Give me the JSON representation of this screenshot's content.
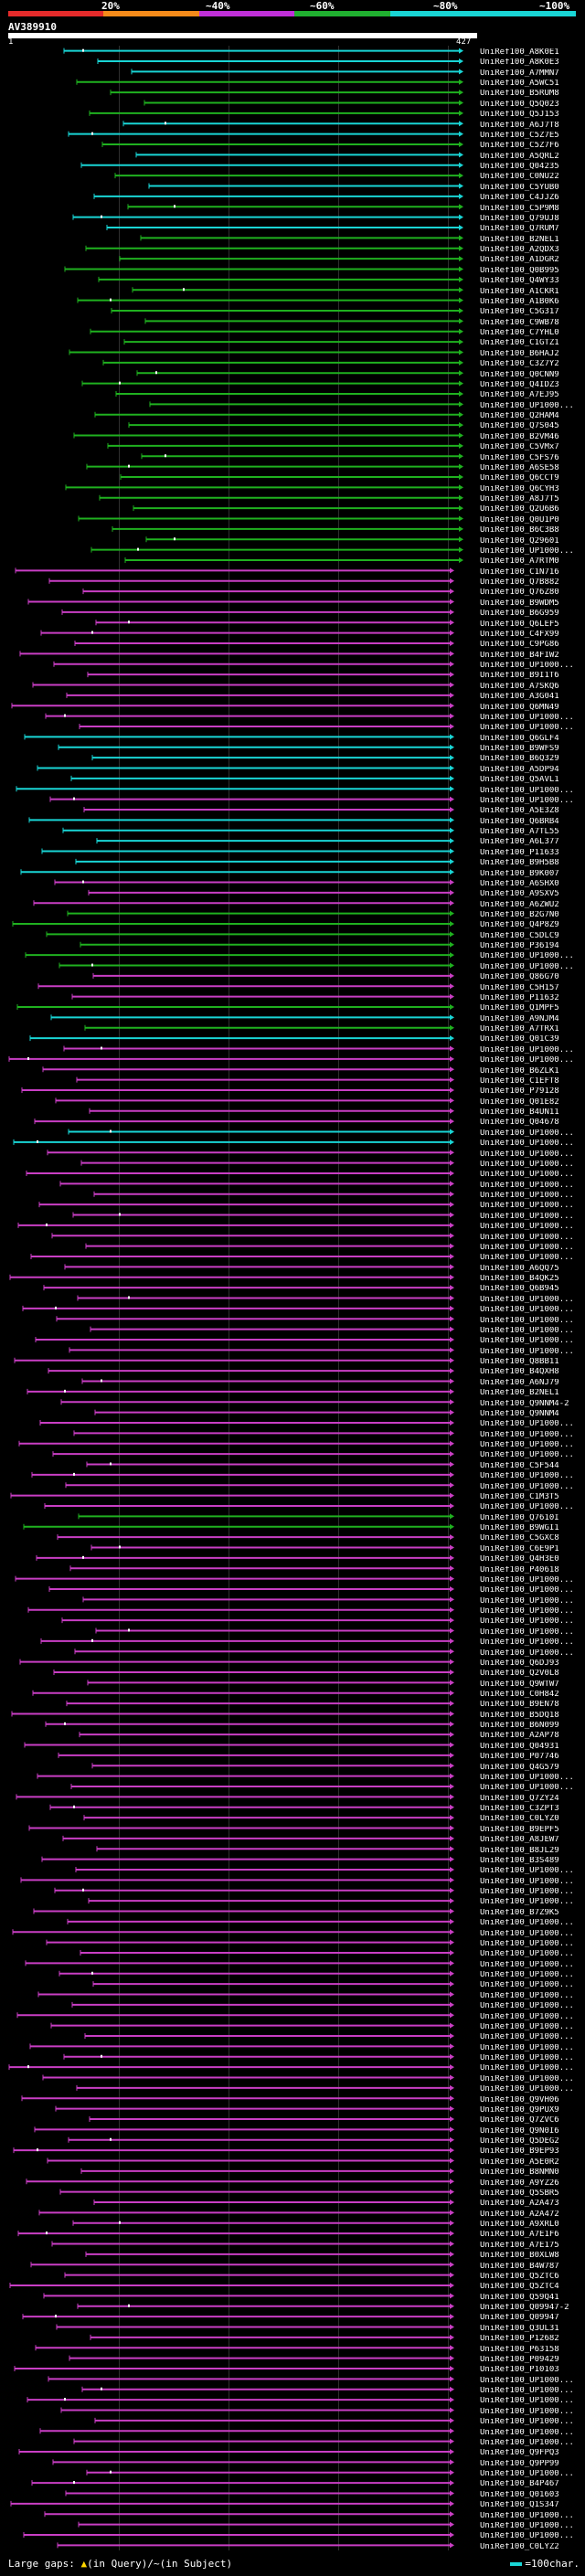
{
  "scale": {
    "labels": [
      "20%",
      "~40%",
      "~60%",
      "~80%",
      "~100%"
    ],
    "colors": [
      "#e52b2b",
      "#f58b1a",
      "#c030d8",
      "#20b030",
      "#19d5d5"
    ]
  },
  "query": {
    "id": "AV389910",
    "start": "1",
    "end": "427"
  },
  "legend": {
    "large_gaps_prefix": "Large gaps:",
    "in_query": "(in Query)",
    "separator": "/",
    "in_subject_prefix": "~",
    "in_subject": "(in Subject)",
    "scale_text": "=100char."
  },
  "colors": {
    "cyan": "#19d5d5",
    "green": "#1fb11f",
    "magenta": "#c93ec4",
    "gap": "#ffd700"
  },
  "hits": [
    "UniRef100_A8K0E1",
    "UniRef100_A8K0E3",
    "UniRef100_A7MMN7",
    "UniRef100_A5WC51",
    "UniRef100_B5RUM8",
    "UniRef100_Q5Q023",
    "UniRef100_Q5J153",
    "UniRef100_A6J7T8",
    "UniRef100_C5Z7E5",
    "UniRef100_C5Z7F6",
    "UniRef100_A5QRL2",
    "UniRef100_Q04235",
    "UniRef100_C0NU22",
    "UniRef100_C5YUB0",
    "UniRef100_C4JJZ6",
    "UniRef100_C5P9M8",
    "UniRef100_Q79UJ8",
    "UniRef100_Q7RUM7",
    "UniRef100_B2NEL1",
    "UniRef100_A2QDX3",
    "UniRef100_A1DGR2",
    "UniRef100_Q0B995",
    "UniRef100_Q4WY33",
    "UniRef100_A1CKR1",
    "UniRef100_A1B0K6",
    "UniRef100_C5G317",
    "UniRef100_C9WB78",
    "UniRef100_C7YHL0",
    "UniRef100_C1GTZ1",
    "UniRef100_B6HAJ2",
    "UniRef100_C3Z7Y2",
    "UniRef100_Q0CNN9",
    "UniRef100_Q4IDZ3",
    "UniRef100_A7EJ95",
    "UniRef100_UP1000...",
    "UniRef100_Q2HAM4",
    "UniRef100_Q7S045",
    "UniRef100_B2VM46",
    "UniRef100_C5VMx7",
    "UniRef100_C5FS76",
    "UniRef100_A6SE58",
    "UniRef100_Q6CCT9",
    "UniRef100_Q6CYH3",
    "UniRef100_A8J7T5",
    "UniRef100_Q2U6B6",
    "UniRef100_Q0U1P0",
    "UniRef100_B6C3B8",
    "UniRef100_Q29601",
    "UniRef100_UP1000...",
    "UniRef100_A7RTM0",
    "UniRef100_C1N716",
    "UniRef100_Q7B882",
    "UniRef100_Q76Z80",
    "UniRef100_B9WDM5",
    "UniRef100_B6G959",
    "UniRef100_Q6LEF5",
    "UniRef100_C4FX99",
    "UniRef100_C9PG86",
    "UniRef100_B4FIW2",
    "UniRef100_UP1000...",
    "UniRef100_B9I1T6",
    "UniRef100_A7SKQ6",
    "UniRef100_A3G041",
    "UniRef100_Q6MN49",
    "UniRef100_UP1000...",
    "UniRef100_UP1000...",
    "UniRef100_Q6GLF4",
    "UniRef100_B9WFS9",
    "UniRef100_B6Q329",
    "UniRef100_A5DP94",
    "UniRef100_Q5AVL1",
    "UniRef100_UP1000...",
    "UniRef100_UP1000...",
    "UniRef100_A5E3Z8",
    "UniRef100_Q6BRB4",
    "UniRef100_A7TL55",
    "UniRef100_A6L377",
    "UniRef100_P11633",
    "UniRef100_B9H5B8",
    "UniRef100_B9K007",
    "UniRef100_A6SHX0",
    "UniRef100_A9SXV5",
    "UniRef100_A6ZWU2",
    "UniRef100_B2G7N0",
    "UniRef100_Q4P8Z9",
    "UniRef100_C5DLC9",
    "UniRef100_P36194",
    "UniRef100_UP1000...",
    "UniRef100_UP1000...",
    "UniRef100_Q86G70",
    "UniRef100_C5H157",
    "UniRef100_P11632",
    "UniRef100_Q1MPF5",
    "UniRef100_A9NJM4",
    "UniRef100_A7TRX1",
    "UniRef100_Q01C39",
    "UniRef100_UP1000...",
    "UniRef100_UP1000...",
    "UniRef100_B6ZLK1",
    "UniRef100_C1EFT8",
    "UniRef100_P79128",
    "UniRef100_Q01E82",
    "UniRef100_B4UN11",
    "UniRef100_Q04678",
    "UniRef100_UP1000...",
    "UniRef100_UP1000...",
    "UniRef100_UP1000...",
    "UniRef100_UP1000...",
    "UniRef100_UP1000...",
    "UniRef100_UP1000...",
    "UniRef100_UP1000...",
    "UniRef100_UP1000...",
    "UniRef100_UP1000...",
    "UniRef100_UP1000...",
    "UniRef100_UP1000...",
    "UniRef100_UP1000...",
    "UniRef100_UP1000...",
    "UniRef100_A6QQ75",
    "UniRef100_B4QK25",
    "UniRef100_Q6B945",
    "UniRef100_UP1000...",
    "UniRef100_UP1000...",
    "UniRef100_UP1000...",
    "UniRef100_UP1000...",
    "UniRef100_UP1000...",
    "UniRef100_UP1000...",
    "UniRef100_Q8BB11",
    "UniRef100_B4QXH8",
    "UniRef100_A6NJ79",
    "UniRef100_B2NEL1",
    "UniRef100_Q9NNM4-2",
    "UniRef100_Q9NNM4",
    "UniRef100_UP1000...",
    "UniRef100_UP1000...",
    "UniRef100_UP1000...",
    "UniRef100_UP1000...",
    "UniRef100_C5F544",
    "UniRef100_UP1000...",
    "UniRef100_UP1000...",
    "UniRef100_C1M3T5",
    "UniRef100_UP1000...",
    "UniRef100_Q7610I",
    "UniRef100_B9WGI1",
    "UniRef100_C5GXC8",
    "UniRef100_C6E9P1",
    "UniRef100_Q4H3E0",
    "UniRef100_P40618",
    "UniRef100_UP1000...",
    "UniRef100_UP1000...",
    "UniRef100_UP1000...",
    "UniRef100_UP1000...",
    "UniRef100_UP1000...",
    "UniRef100_UP1000...",
    "UniRef100_UP1000...",
    "UniRef100_UP1000...",
    "UniRef100_Q6DJ93",
    "UniRef100_Q2V0L8",
    "UniRef100_Q9WTW7",
    "UniRef100_C0H842",
    "UniRef100_B9EN78",
    "UniRef100_B5DQ18",
    "UniRef100_B6N099",
    "UniRef100_A2AP78",
    "UniRef100_Q04931",
    "UniRef100_P07746",
    "UniRef100_Q4G579",
    "UniRef100_UP1000...",
    "UniRef100_UP1000...",
    "UniRef100_Q7ZY24",
    "UniRef100_C3ZPT3",
    "UniRef100_C0LYZ0",
    "UniRef100_B9EPF5",
    "UniRef100_A8JEW7",
    "UniRef100_B8JL29",
    "UniRef100_B3S489",
    "UniRef100_UP1000...",
    "UniRef100_UP1000...",
    "UniRef100_UP1000...",
    "UniRef100_UP1000...",
    "UniRef100_B7Z9K5",
    "UniRef100_UP1000...",
    "UniRef100_UP1000...",
    "UniRef100_UP1000...",
    "UniRef100_UP1000...",
    "UniRef100_UP1000...",
    "UniRef100_UP1000...",
    "UniRef100_UP1000...",
    "UniRef100_UP1000...",
    "UniRef100_UP1000...",
    "UniRef100_UP1000...",
    "UniRef100_UP1000...",
    "UniRef100_UP1000...",
    "UniRef100_UP1000...",
    "UniRef100_UP1000...",
    "UniRef100_UP1000...",
    "UniRef100_UP1000...",
    "UniRef100_UP1000...",
    "UniRef100_Q9VH06",
    "UniRef100_Q9PUX9",
    "UniRef100_Q7ZVC6",
    "UniRef100_Q9N0I6",
    "UniRef100_Q5DEG2",
    "UniRef100_B9EP93",
    "UniRef100_A5E0R2",
    "UniRef100_B8NMN0",
    "UniRef100_A9YZ26",
    "UniRef100_Q5SBR5",
    "UniRef100_A2A473",
    "UniRef100_A2A472",
    "UniRef100_A9XRL0",
    "UniRef100_A7E1F6",
    "UniRef100_A7E175",
    "UniRef100_B0XLW8",
    "UniRef100_B4W787",
    "UniRef100_Q5ZTC6",
    "UniRef100_Q5ZTC4",
    "UniRef100_Q59Q41",
    "UniRef100_Q09947-2",
    "UniRef100_Q09947",
    "UniRef100_Q3UL31",
    "UniRef100_P12682",
    "UniRef100_P63158",
    "UniRef100_P09429",
    "UniRef100_P10103",
    "UniRef100_UP1000...",
    "UniRef100_UP1000...",
    "UniRef100_UP1000...",
    "UniRef100_UP1000...",
    "UniRef100_UP1000...",
    "UniRef100_UP1000...",
    "UniRef100_UP1000...",
    "UniRef100_Q9FPQ3",
    "UniRef100_Q9PP99",
    "UniRef100_UP1000...",
    "UniRef100_B4P467",
    "UniRef100_Q01603",
    "UniRef100_Q1S347",
    "UniRef100_UP1000...",
    "UniRef100_UP1000...",
    "UniRef100_UP1000...",
    "UniRef100_C0LYZ2"
  ]
}
